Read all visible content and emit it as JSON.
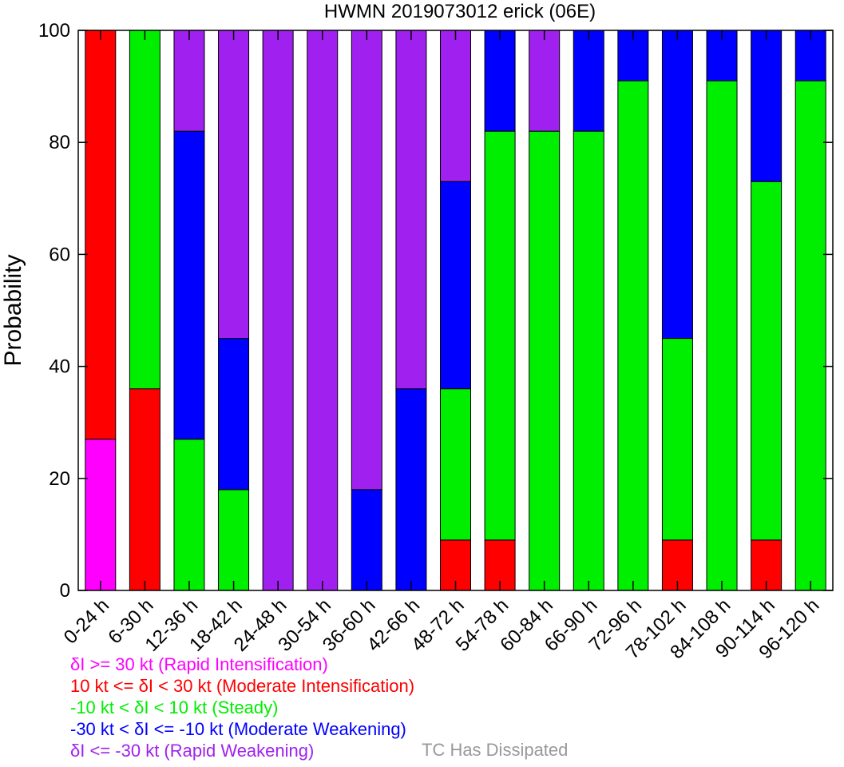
{
  "chart_data": {
    "type": "bar",
    "stacked": true,
    "title": "HWMN 2019073012 erick (06E)",
    "xlabel": "",
    "ylabel": "Probability",
    "ylim": [
      0,
      100
    ],
    "yticks": [
      0,
      20,
      40,
      60,
      80,
      100
    ],
    "grid": false,
    "categories": [
      "0-24 h",
      "6-30 h",
      "12-36 h",
      "18-42 h",
      "24-48 h",
      "30-54 h",
      "36-60 h",
      "42-66 h",
      "48-72 h",
      "54-78 h",
      "60-84 h",
      "66-90 h",
      "72-96 h",
      "78-102 h",
      "84-108 h",
      "90-114 h",
      "96-120 h"
    ],
    "series": [
      {
        "key": "ri",
        "color": "#ff00ff",
        "values": [
          27,
          0,
          0,
          0,
          0,
          0,
          0,
          0,
          0,
          0,
          0,
          0,
          0,
          0,
          0,
          0,
          0
        ]
      },
      {
        "key": "mi",
        "color": "#ff0000",
        "values": [
          73,
          36,
          0,
          0,
          0,
          0,
          0,
          0,
          9,
          9,
          0,
          0,
          0,
          9,
          0,
          9,
          0
        ]
      },
      {
        "key": "st",
        "color": "#00ee00",
        "values": [
          0,
          64,
          27,
          18,
          0,
          0,
          0,
          0,
          27,
          73,
          82,
          82,
          91,
          36,
          91,
          64,
          91
        ]
      },
      {
        "key": "mw",
        "color": "#0000ff",
        "values": [
          0,
          0,
          55,
          27,
          0,
          0,
          18,
          36,
          37,
          18,
          0,
          18,
          9,
          55,
          9,
          27,
          9
        ]
      },
      {
        "key": "rw",
        "color": "#a020f0",
        "values": [
          0,
          0,
          18,
          55,
          100,
          100,
          82,
          64,
          27,
          0,
          18,
          0,
          0,
          0,
          0,
          0,
          0
        ]
      }
    ]
  },
  "legend": {
    "items": [
      {
        "text": "δI >= 30 kt (Rapid Intensification)",
        "color": "#ff00ff"
      },
      {
        "text": "10 kt <= δI < 30 kt (Moderate Intensification)",
        "color": "#ff0000"
      },
      {
        "text": "-10 kt < δI < 10 kt (Steady)",
        "color": "#00ee00"
      },
      {
        "text": "-30 kt < δI <= -10 kt (Moderate Weakening)",
        "color": "#0000ff"
      },
      {
        "text": "δI <= -30 kt (Rapid Weakening)",
        "color": "#a020f0"
      }
    ],
    "dissipated": {
      "text": "TC Has Dissipated",
      "color": "#999999"
    }
  }
}
